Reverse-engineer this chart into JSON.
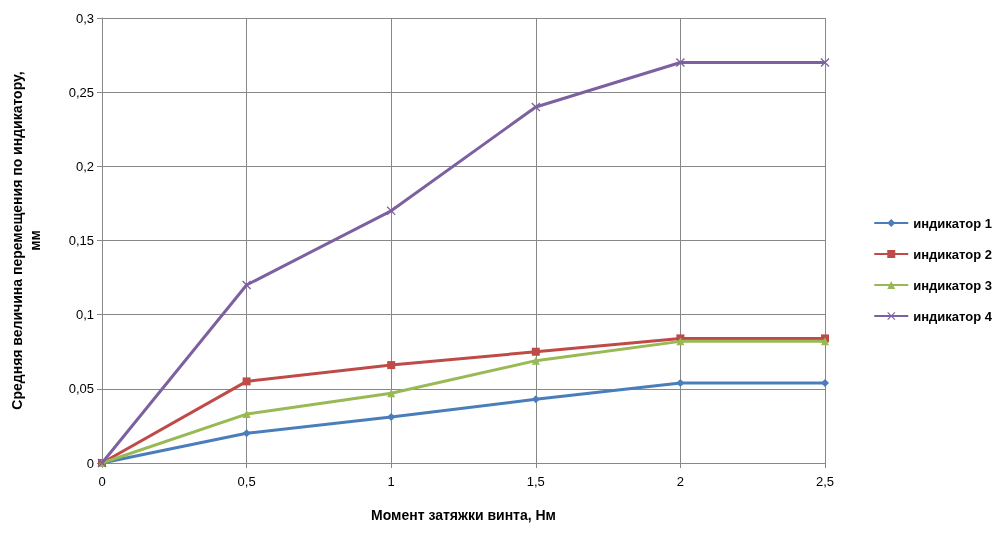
{
  "chart_data": {
    "type": "line",
    "xlabel": "Момент затяжки винта, Нм",
    "ylabel": "Средняя величина перемещения по индикатору,\nмм",
    "x": [
      0,
      0.5,
      1,
      1.5,
      2,
      2.5
    ],
    "series": [
      {
        "name": "индикатор 1",
        "color": "#4a7ebb",
        "marker": "diamond",
        "values": [
          0,
          0.02,
          0.031,
          0.043,
          0.054,
          0.054
        ]
      },
      {
        "name": "индикатор 2",
        "color": "#be4b48",
        "marker": "square",
        "values": [
          0,
          0.055,
          0.066,
          0.075,
          0.084,
          0.084
        ]
      },
      {
        "name": "индикатор 3",
        "color": "#98b954",
        "marker": "triangle",
        "values": [
          0,
          0.033,
          0.047,
          0.069,
          0.082,
          0.082
        ]
      },
      {
        "name": "индикатор 4",
        "color": "#7d60a0",
        "marker": "cross",
        "values": [
          0,
          0.12,
          0.17,
          0.24,
          0.27,
          0.27
        ]
      }
    ],
    "xlim": [
      0,
      2.5
    ],
    "xticks": [
      0,
      {
        "value": 0.5,
        "label": "0,5"
      },
      1,
      {
        "value": 1.5,
        "label": "1,5"
      },
      2,
      {
        "value": 2.5,
        "label": "2,5"
      }
    ],
    "ylim": [
      0,
      0.3
    ],
    "yticks": [
      0,
      {
        "value": 0.05,
        "label": "0,05"
      },
      {
        "value": 0.1,
        "label": "0,1"
      },
      {
        "value": 0.15,
        "label": "0,15"
      },
      {
        "value": 0.2,
        "label": "0,2"
      },
      {
        "value": 0.25,
        "label": "0,25"
      },
      {
        "value": 0.3,
        "label": "0,3"
      }
    ],
    "grid": true,
    "legend": "right",
    "line_style": "solid"
  }
}
